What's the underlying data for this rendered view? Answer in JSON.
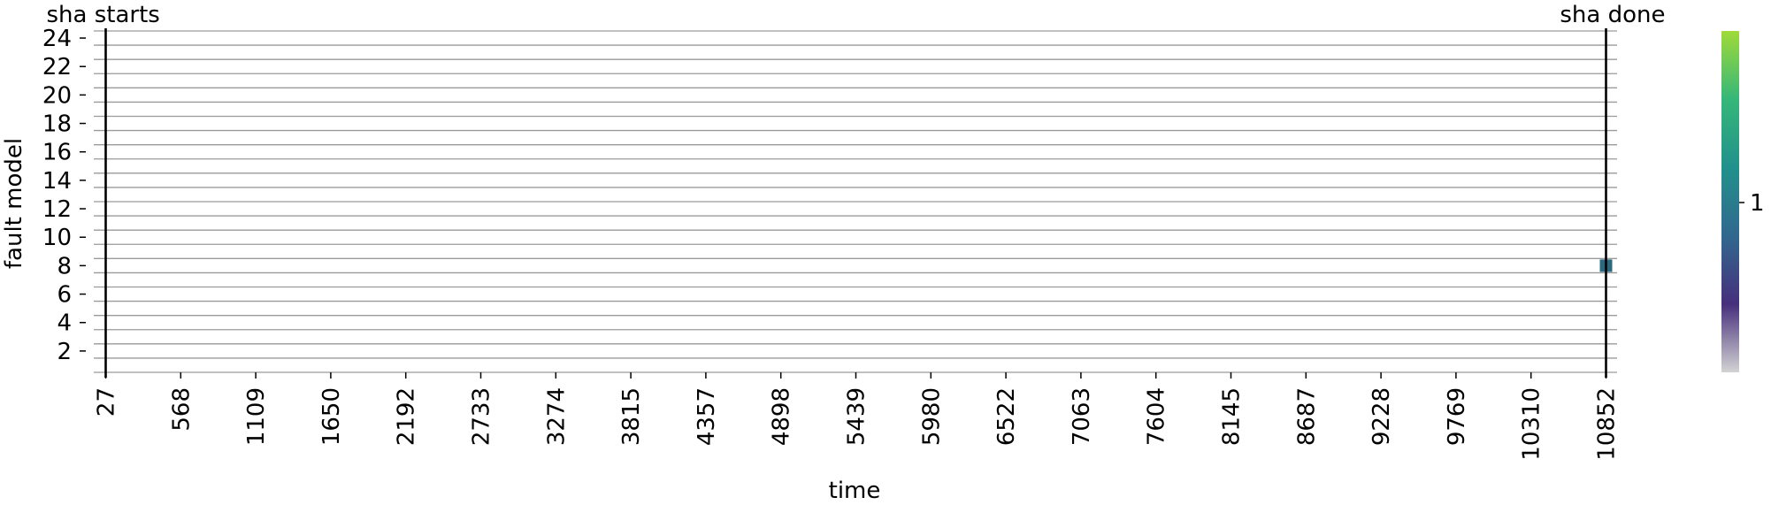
{
  "chart_data": {
    "type": "heatmap",
    "xlabel": "time",
    "ylabel": "fault model",
    "x_tick_labels": [
      "27",
      "568",
      "1109",
      "1650",
      "2192",
      "2733",
      "3274",
      "3815",
      "4357",
      "4898",
      "5439",
      "5980",
      "6522",
      "7063",
      "7604",
      "8145",
      "8687",
      "9228",
      "9769",
      "10310",
      "10852"
    ],
    "y_tick_labels": [
      "24",
      "22",
      "20",
      "18",
      "16",
      "14",
      "12",
      "10",
      "8",
      "6",
      "4",
      "2"
    ],
    "x_range": [
      27,
      10852
    ],
    "y_range": [
      1,
      24
    ],
    "y_ticks": [
      24,
      22,
      20,
      18,
      16,
      14,
      12,
      10,
      8,
      6,
      4,
      2
    ],
    "grid": true,
    "annotations": [
      {
        "label": "sha starts",
        "x": 27
      },
      {
        "label": "sha done",
        "x": 10852
      }
    ],
    "cells": [
      {
        "x": 10852,
        "y": 8,
        "value": 1,
        "color": "#2b6a7e"
      }
    ],
    "colorbar": {
      "ticks": [
        "1"
      ],
      "colors": [
        "#d3d3d3",
        "#462f7c",
        "#31688e",
        "#21918c",
        "#35b779",
        "#a0da39"
      ]
    }
  }
}
